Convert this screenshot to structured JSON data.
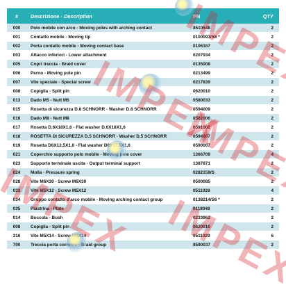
{
  "table": {
    "headers": {
      "pos": "#",
      "description_it": "Descrizione - ",
      "description_en": "Description",
      "pn": "PN",
      "qty": "QTY"
    },
    "rows": [
      {
        "pos": "000",
        "description": "Polo mobile con arco - Moving poles with arching contact",
        "pn": "8510548",
        "qty": "2"
      },
      {
        "pos": "001",
        "description": "Contatto mobile - Moving tip",
        "pn": "0100093/S6 *",
        "qty": "2"
      },
      {
        "pos": "002",
        "description": "Porta contatto mobile - Moving contact base",
        "pn": "0106167",
        "qty": "2"
      },
      {
        "pos": "003",
        "description": "Attacco inferiori - Lower attachment",
        "pn": "0207934",
        "qty": "2"
      },
      {
        "pos": "005",
        "description": "Copri treccia - Braid cover",
        "pn": "0135008",
        "qty": "2"
      },
      {
        "pos": "006",
        "description": "Perno - Moving pole pin",
        "pn": "0213499",
        "qty": "2"
      },
      {
        "pos": "007",
        "description": "Vite speciale - Special screw",
        "pn": "0217839",
        "qty": "2"
      },
      {
        "pos": "008",
        "description": "Copiglia - Split pin",
        "pn": "0620010",
        "qty": "2"
      },
      {
        "pos": "013",
        "description": "Dado M5 - Nutt M5",
        "pn": "0580033",
        "qty": "2"
      },
      {
        "pos": "015",
        "description": "Rosetta di sicurezza D.8 SCHNORR - Washer D.8 SCHNORR",
        "pn": "0594009",
        "qty": "2"
      },
      {
        "pos": "016",
        "description": "Dado M8 - Nutt M8",
        "pn": "0582006",
        "qty": "2"
      },
      {
        "pos": "017",
        "description": "Rosetta D.6X18X1,6 - Flat washer D.6X18X1,6",
        "pn": "0591002",
        "qty": "2"
      },
      {
        "pos": "018",
        "description": "ROSETTA DI SICUREZZA D.5 SCHNORR - Washer D.5 SCHNORR",
        "pn": "0594007",
        "qty": "2"
      },
      {
        "pos": "019",
        "description": "Rosetta D6X12,5X1,6 - Flat washer D6X12,5X1,6",
        "pn": "0590007",
        "qty": "2"
      },
      {
        "pos": "021",
        "description": "Coperchio supporto polo mobile - Moving pole cover",
        "pn": "1366709",
        "qty": "4"
      },
      {
        "pos": "023",
        "description": "Supporto terminale uscita - Output terminal support",
        "pn": "1387871",
        "qty": "2"
      },
      {
        "pos": "024",
        "description": "Molla - Pressure spring",
        "pn": "0282159/S",
        "qty": "2"
      },
      {
        "pos": "028",
        "description": "Vite M6X30 - Screw M6X30",
        "pn": "0500085",
        "qty": "2"
      },
      {
        "pos": "033",
        "description": "Vite M5X12 - Screw  M5X12",
        "pn": "0511028",
        "qty": "4"
      },
      {
        "pos": "034",
        "description": "Gruppo contatto d'arco mobile - Moving arching contact group",
        "pn": "0138214/S6 *",
        "qty": "2"
      },
      {
        "pos": "035",
        "description": "Piastrina - Plate",
        "pn": "0118048",
        "qty": "2"
      },
      {
        "pos": "014",
        "description": "Boccola - Bush",
        "pn": "0233962",
        "qty": "2"
      },
      {
        "pos": "008",
        "description": "Copiglia - Split pin",
        "pn": "0620010",
        "qty": "2"
      },
      {
        "pos": "316",
        "description": "Vite M5X14 - Screw M5X14",
        "pn": "0511029",
        "qty": "6"
      },
      {
        "pos": "700",
        "description": "Treccia porta corrente - Braid group",
        "pn": "8590037",
        "qty": "2"
      }
    ]
  },
  "watermarks": [
    "IMPEX",
    "IMPEX",
    "IMPEX",
    "IMPEX",
    "IMPEX"
  ],
  "colors": {
    "header": "#27aeb6",
    "row_alt": "#cfe7ec",
    "watermark": "#d61e28"
  }
}
